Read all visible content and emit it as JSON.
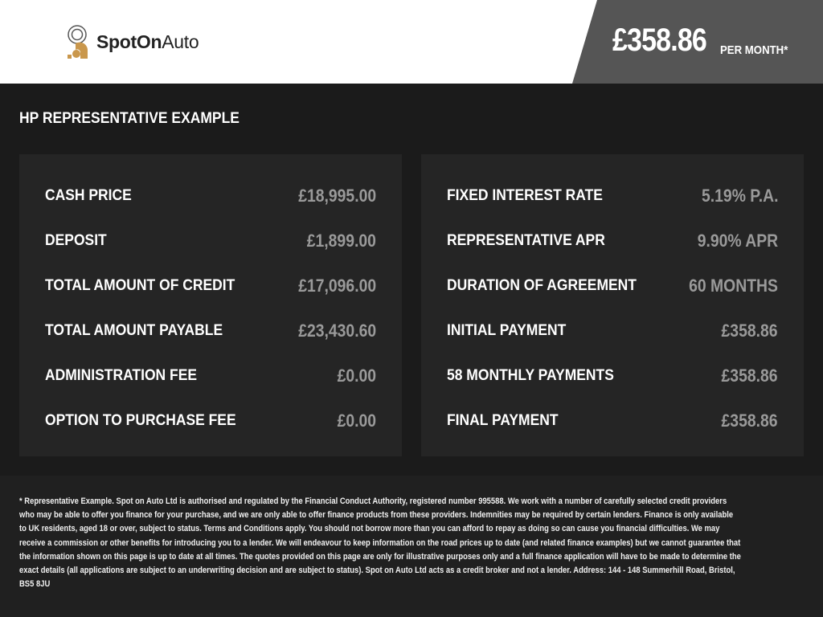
{
  "brand": {
    "name_bold": "SpotOn",
    "name_regular": "Auto",
    "logo_color": "#c9974c"
  },
  "header": {
    "monthly_price": "£358.86",
    "per_month_label": "PER MONTH*"
  },
  "section_title": "HP REPRESENTATIVE EXAMPLE",
  "left_rows": [
    {
      "label": "CASH PRICE",
      "value": "£18,995.00"
    },
    {
      "label": "DEPOSIT",
      "value": "£1,899.00"
    },
    {
      "label": "TOTAL AMOUNT OF CREDIT",
      "value": "£17,096.00"
    },
    {
      "label": "TOTAL AMOUNT PAYABLE",
      "value": "£23,430.60"
    },
    {
      "label": "ADMINISTRATION FEE",
      "value": "£0.00"
    },
    {
      "label": "OPTION TO PURCHASE FEE",
      "value": "£0.00"
    }
  ],
  "right_rows": [
    {
      "label": "FIXED INTEREST RATE",
      "value": "5.19% P.A."
    },
    {
      "label": "REPRESENTATIVE APR",
      "value": "9.90% APR"
    },
    {
      "label": "DURATION OF AGREEMENT",
      "value": "60 MONTHS"
    },
    {
      "label": "INITIAL PAYMENT",
      "value": "£358.86"
    },
    {
      "label": "58 MONTHLY PAYMENTS",
      "value": "£358.86"
    },
    {
      "label": "FINAL PAYMENT",
      "value": "£358.86"
    }
  ],
  "disclaimer": "* Representative Example. Spot on Auto Ltd is authorised and regulated by the Financial Conduct Authority, registered number 995588. We work with a number of carefully selected credit providers who may be able to offer you finance for your purchase, and we are only able to offer finance products from these providers. Indemnities may be required by certain lenders. Finance is only available to UK residents, aged 18 or over, subject to status. Terms and Conditions apply. You should not borrow more than you can afford to repay as doing so can cause you financial difficulties. We may receive a commission or other benefits for introducing you to a lender. We will endeavour to keep information on the road prices up to date (and related finance examples) but we cannot guarantee that the information shown on this page is up to date at all times. The quotes provided on this page are only for illustrative purposes only and a full finance application will have to be made to determine the exact details (all applications are subject to an underwriting decision and are subject to status). Spot on Auto Ltd acts as a credit broker and not a lender. Address: 144 - 148 Summerhill Road, Bristol, BS5 8JU"
}
